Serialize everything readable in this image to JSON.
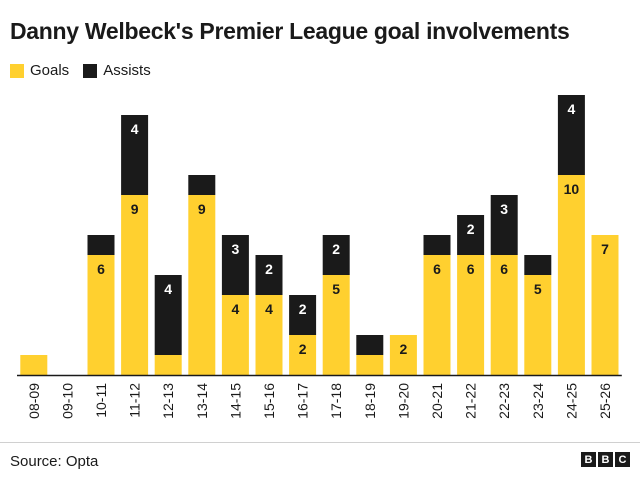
{
  "title": "Danny Welbeck's Premier League goal involvements",
  "source": "Source: Opta",
  "logo": {
    "letters": [
      "B",
      "B",
      "C"
    ]
  },
  "colors": {
    "goals": "#ffd02f",
    "assists": "#1a1a1a",
    "axis": "#1a1a1a"
  },
  "legend": [
    {
      "label": "Goals",
      "color": "#ffd02f"
    },
    {
      "label": "Assists",
      "color": "#1a1a1a"
    }
  ],
  "chart_data": {
    "type": "bar",
    "stacked": true,
    "title": "Danny Welbeck's Premier League goal involvements",
    "categories": [
      "08-09",
      "09-10",
      "10-11",
      "11-12",
      "12-13",
      "13-14",
      "14-15",
      "15-16",
      "16-17",
      "17-18",
      "18-19",
      "19-20",
      "20-21",
      "21-22",
      "22-23",
      "23-24",
      "24-25",
      "25-26"
    ],
    "series": [
      {
        "name": "Goals",
        "values": [
          1,
          0,
          6,
          9,
          1,
          9,
          4,
          4,
          2,
          5,
          1,
          2,
          6,
          6,
          6,
          5,
          10,
          7
        ],
        "value_labels": [
          "",
          "",
          "6",
          "9",
          "",
          "9",
          "4",
          "4",
          "2",
          "5",
          "",
          "2",
          "6",
          "6",
          "6",
          "5",
          "10",
          "7"
        ]
      },
      {
        "name": "Assists",
        "values": [
          0,
          0,
          1,
          4,
          4,
          1,
          3,
          2,
          2,
          2,
          1,
          0,
          1,
          2,
          3,
          1,
          4,
          0
        ],
        "value_labels": [
          "",
          "",
          "",
          "4",
          "4",
          "",
          "3",
          "2",
          "2",
          "2",
          "",
          "",
          "",
          "2",
          "3",
          "",
          "4",
          ""
        ]
      }
    ],
    "ylim": [
      0,
      14
    ],
    "grid": false,
    "legend_position": "top-left"
  }
}
